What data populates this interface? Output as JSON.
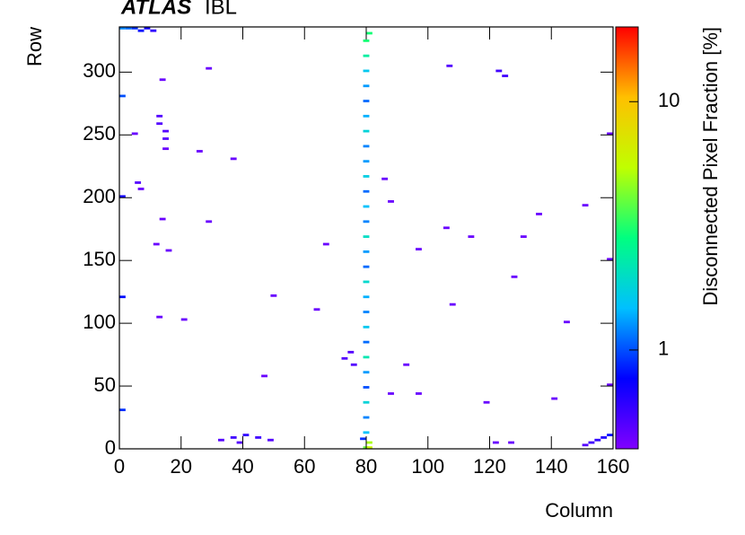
{
  "chart_data": {
    "type": "heatmap",
    "title": "ATLAS",
    "subtitle": "IBL",
    "xlabel": "Column",
    "ylabel": "Row",
    "colorbar_label": "Disconnected Pixel Fraction [%]",
    "xlim": [
      0,
      160
    ],
    "ylim": [
      0,
      336
    ],
    "xticks": [
      0,
      20,
      40,
      60,
      80,
      100,
      120,
      140,
      160
    ],
    "yticks": [
      0,
      50,
      100,
      150,
      200,
      250,
      300
    ],
    "zlim": [
      0.4,
      20
    ],
    "zticks": [
      1,
      10
    ],
    "zscale": "log",
    "colormap": [
      "#8000ff",
      "#0000ff",
      "#00c0ff",
      "#00ff80",
      "#c0ff00",
      "#ffc000",
      "#ff0000"
    ],
    "x": [
      79,
      79,
      79,
      79,
      79,
      79,
      79,
      79,
      79,
      79,
      79,
      79,
      79,
      79,
      79,
      79,
      79,
      79,
      79,
      79,
      79,
      79,
      79,
      79,
      79,
      79,
      79,
      79,
      80,
      80,
      80,
      0,
      0,
      0,
      0,
      0,
      2,
      4,
      6,
      8,
      10,
      28,
      13,
      12,
      12,
      14,
      14,
      14,
      4,
      25,
      36,
      5,
      6,
      13,
      28,
      11,
      15,
      66,
      12,
      20,
      72,
      74,
      75,
      92,
      96,
      87,
      118,
      140,
      106,
      122,
      124,
      105,
      96,
      113,
      127,
      130,
      135,
      85,
      87,
      150,
      144,
      107,
      63,
      49,
      46,
      32,
      36,
      40,
      44,
      48,
      38,
      150,
      152,
      154,
      156,
      158,
      78,
      121,
      126,
      158,
      158,
      158
    ],
    "y": [
      0,
      12,
      24,
      36,
      48,
      60,
      72,
      84,
      96,
      108,
      120,
      132,
      144,
      156,
      168,
      180,
      192,
      204,
      216,
      228,
      240,
      252,
      264,
      276,
      288,
      300,
      312,
      324,
      0,
      4,
      330,
      30,
      120,
      200,
      280,
      334,
      334,
      334,
      332,
      334,
      332,
      302,
      293,
      264,
      258,
      252,
      246,
      238,
      250,
      236,
      230,
      211,
      206,
      182,
      180,
      162,
      157,
      162,
      104,
      102,
      71,
      76,
      66,
      66,
      43,
      43,
      36,
      39,
      304,
      300,
      296,
      175,
      158,
      168,
      136,
      168,
      186,
      214,
      196,
      193,
      100,
      114,
      110,
      121,
      57,
      6,
      8,
      10,
      8,
      6,
      4,
      2,
      4,
      6,
      8,
      10,
      7,
      4,
      4,
      50,
      150,
      250
    ],
    "values": [
      4,
      1.5,
      1.2,
      1.8,
      1,
      1.3,
      2.2,
      1.1,
      1.6,
      1.2,
      1.4,
      1.9,
      1.1,
      1.3,
      2,
      1.2,
      1.5,
      1.1,
      1.7,
      1.3,
      1.2,
      1.8,
      1.4,
      1.1,
      1.3,
      1.6,
      2.4,
      3,
      6,
      5,
      3,
      0.9,
      0.8,
      0.7,
      1,
      1.2,
      1.1,
      0.9,
      0.8,
      0.7,
      0.6,
      0.45,
      0.45,
      0.5,
      0.5,
      0.5,
      0.5,
      0.45,
      0.45,
      0.45,
      0.45,
      0.5,
      0.45,
      0.45,
      0.45,
      0.45,
      0.45,
      0.45,
      0.45,
      0.45,
      0.5,
      0.5,
      0.5,
      0.45,
      0.45,
      0.45,
      0.45,
      0.45,
      0.5,
      0.55,
      0.55,
      0.45,
      0.45,
      0.45,
      0.45,
      0.45,
      0.45,
      0.45,
      0.45,
      0.45,
      0.45,
      0.45,
      0.45,
      0.45,
      0.45,
      0.5,
      0.55,
      0.6,
      0.55,
      0.5,
      0.5,
      0.5,
      0.55,
      0.6,
      0.65,
      0.8,
      0.9,
      0.45,
      0.45,
      0.45,
      0.45,
      0.45
    ]
  }
}
